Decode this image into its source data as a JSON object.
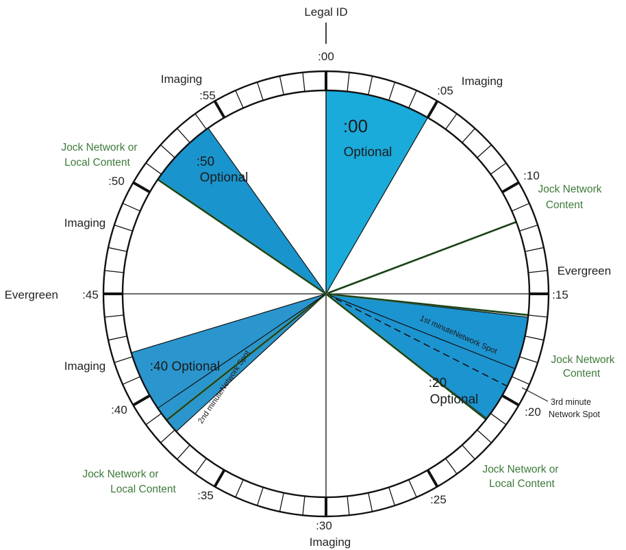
{
  "top_label": "Legal ID",
  "minute_marks": [
    ":00",
    ":05",
    ":10",
    ":15",
    ":20",
    ":25",
    ":30",
    ":35",
    ":40",
    ":45",
    ":50",
    ":55"
  ],
  "labels": {
    "imaging": "Imaging",
    "evergreen": "Evergreen",
    "jock_network_content_line1": "Jock Network",
    "jock_network_content_line2": "Content",
    "jock_or_local_line1": "Jock Network or",
    "jock_or_local_line2": "Local Content",
    "third_minute_line1": "3rd minute",
    "third_minute_line2": "Network Spot"
  },
  "wedges": {
    "w00_time": ":00",
    "w00_note": "Optional",
    "w20_time": ":20",
    "w20_note": "Optional",
    "w40": ":40 Optional",
    "w50_time": ":50",
    "w50_note": "Optional",
    "first_minute_spot": "1st minuteNetwork Spot",
    "second_minute_spot": "2nd minuteNetwork Spot"
  },
  "colors": {
    "wedge_00": "#1aabdb",
    "wedge_20": "#1c94d0",
    "wedge_40": "#2b96cd",
    "wedge_50": "#1a94cd",
    "green_line": "#3d7a3a",
    "ink": "#111111"
  }
}
